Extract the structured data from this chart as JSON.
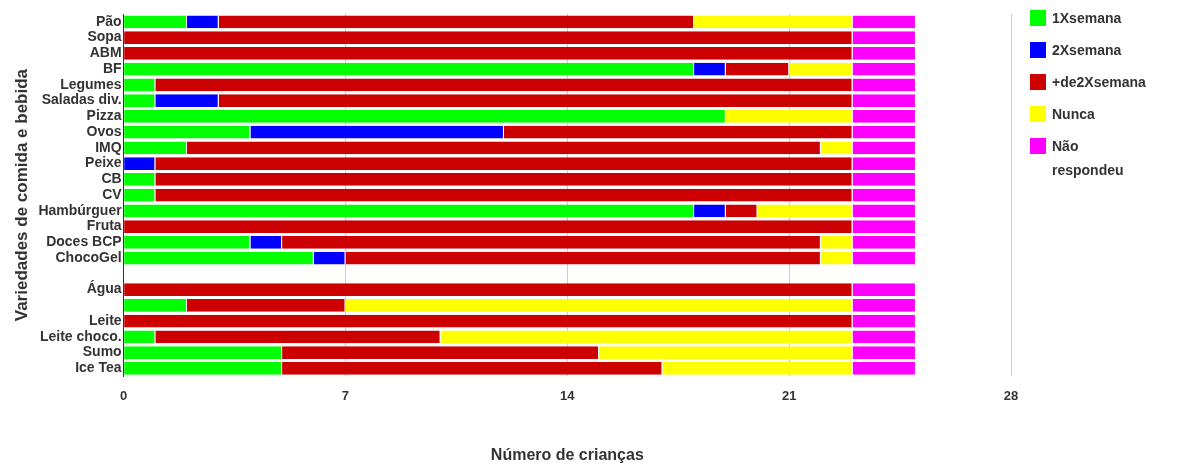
{
  "chart_data": {
    "type": "bar",
    "orientation": "horizontal",
    "stacked": true,
    "xlabel": "Número de crianças",
    "ylabel": "Variedades de comida e bebida",
    "categories": [
      "Pão",
      "Sopa",
      "ABM",
      "BF",
      "Legumes",
      "Saladas div.",
      "Pizza",
      "Ovos",
      "IMQ",
      "Peixe",
      "CB",
      "CV",
      "Hambúrguer",
      "Fruta",
      "Doces BCP",
      "ChocoGel",
      null,
      "Água",
      null,
      "Leite",
      "Leite choco.",
      "Sumo",
      "Ice Tea"
    ],
    "series": [
      {
        "name": "1Xsemana",
        "color": "#00ff00",
        "values": [
          2,
          0,
          0,
          18,
          1,
          1,
          19,
          4,
          2,
          0,
          1,
          1,
          18,
          0,
          4,
          6,
          null,
          0,
          2,
          0,
          1,
          5,
          5
        ]
      },
      {
        "name": "2Xsemana",
        "color": "#0000ff",
        "values": [
          1,
          0,
          0,
          1,
          0,
          2,
          0,
          8,
          0,
          1,
          0,
          0,
          1,
          0,
          1,
          1,
          null,
          0,
          0,
          0,
          0,
          0,
          0
        ]
      },
      {
        "name": "+de2Xsemana",
        "color": "#cc0000",
        "values": [
          15,
          23,
          23,
          2,
          22,
          20,
          0,
          11,
          20,
          22,
          22,
          22,
          1,
          23,
          17,
          15,
          null,
          23,
          5,
          23,
          9,
          10,
          12
        ]
      },
      {
        "name": "Nunca",
        "color": "#ffff00",
        "values": [
          5,
          0,
          0,
          2,
          0,
          0,
          4,
          0,
          1,
          0,
          0,
          0,
          3,
          0,
          1,
          1,
          null,
          0,
          16,
          0,
          13,
          8,
          6
        ]
      },
      {
        "name": "Não respondeu",
        "color": "#ff00ff",
        "values": [
          2,
          2,
          2,
          2,
          2,
          2,
          2,
          2,
          2,
          2,
          2,
          2,
          2,
          2,
          2,
          2,
          null,
          2,
          2,
          2,
          2,
          2,
          2
        ]
      }
    ],
    "xlim": [
      0,
      28
    ],
    "xticks": [
      0,
      7,
      14,
      21,
      28
    ],
    "grid": "x",
    "legend": "right"
  }
}
